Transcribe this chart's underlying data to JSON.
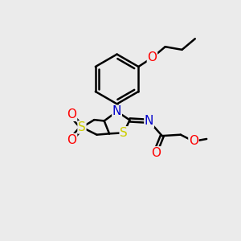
{
  "background_color": "#ebebeb",
  "atom_colors": {
    "C": "#000000",
    "N": "#0000cc",
    "O": "#ff0000",
    "S": "#cccc00"
  },
  "bond_color": "#000000",
  "bond_width": 1.8,
  "figsize": [
    3.0,
    3.0
  ],
  "dpi": 100,
  "xlim": [
    0,
    10
  ],
  "ylim": [
    0,
    10
  ]
}
